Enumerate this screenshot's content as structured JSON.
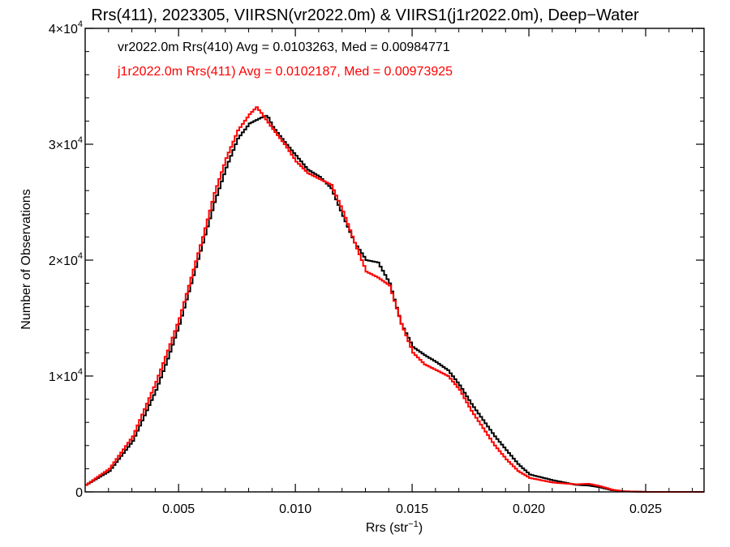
{
  "chart_data": {
    "type": "line",
    "title": "Rrs(411), 2023305, VIIRSN(vr2022.0m) & VIIRS1(j1r2022.0m), Deep−Water",
    "xlabel": "Rrs (str⁻¹)",
    "ylabel": "Number of Observations",
    "xlim": [
      0.001,
      0.0275
    ],
    "ylim": [
      0,
      40000
    ],
    "xticks": [
      0.005,
      0.01,
      0.015,
      0.02,
      0.025
    ],
    "xtick_labels": [
      "0.005",
      "0.010",
      "0.015",
      "0.020",
      "0.025"
    ],
    "yticks": [
      0,
      10000,
      20000,
      30000,
      40000
    ],
    "ytick_labels": [
      {
        "base": "0",
        "exp": ""
      },
      {
        "base": "1×10",
        "exp": "4"
      },
      {
        "base": "2×10",
        "exp": "4"
      },
      {
        "base": "3×10",
        "exp": "4"
      },
      {
        "base": "4×10",
        "exp": "4"
      }
    ],
    "grid": false,
    "legend_position": "top-left",
    "series": [
      {
        "label": "vr2022.0m Rrs(410) Avg = 0.0103263, Med = 0.00984771",
        "color": "#000000",
        "x": [
          0.001,
          0.002,
          0.003,
          0.004,
          0.0045,
          0.005,
          0.0055,
          0.006,
          0.0065,
          0.007,
          0.0075,
          0.008,
          0.0085,
          0.00875,
          0.009,
          0.0095,
          0.01,
          0.0105,
          0.011,
          0.0115,
          0.012,
          0.0125,
          0.013,
          0.0135,
          0.014,
          0.0145,
          0.015,
          0.0155,
          0.016,
          0.0165,
          0.017,
          0.0175,
          0.018,
          0.0185,
          0.019,
          0.0195,
          0.02,
          0.021,
          0.022,
          0.0225,
          0.023,
          0.0235,
          0.024,
          0.025,
          0.026,
          0.0275
        ],
        "y": [
          600,
          1800,
          4400,
          8800,
          11500,
          14500,
          18000,
          21500,
          25000,
          28000,
          30500,
          31800,
          32300,
          32500,
          31500,
          30200,
          29000,
          27800,
          27200,
          26200,
          23800,
          21500,
          20000,
          19800,
          18000,
          14500,
          12500,
          11800,
          11200,
          10500,
          9200,
          7600,
          6200,
          4800,
          3600,
          2400,
          1500,
          1000,
          600,
          550,
          400,
          150,
          50,
          0,
          0,
          0
        ]
      },
      {
        "label": "j1r2022.0m Rrs(411) Avg = 0.0102187, Med = 0.00973925",
        "color": "#ff0000",
        "x": [
          0.001,
          0.002,
          0.003,
          0.004,
          0.0045,
          0.005,
          0.0055,
          0.006,
          0.0065,
          0.007,
          0.0075,
          0.008,
          0.0083,
          0.0085,
          0.00875,
          0.009,
          0.0095,
          0.01,
          0.0105,
          0.011,
          0.0115,
          0.012,
          0.0125,
          0.013,
          0.0135,
          0.014,
          0.0145,
          0.015,
          0.0155,
          0.016,
          0.0165,
          0.017,
          0.0175,
          0.018,
          0.0185,
          0.019,
          0.0195,
          0.02,
          0.021,
          0.022,
          0.0225,
          0.023,
          0.0235,
          0.024,
          0.025,
          0.026,
          0.0275
        ],
        "y": [
          600,
          2000,
          4800,
          9500,
          12200,
          15000,
          18500,
          22000,
          25800,
          28800,
          31200,
          32600,
          33200,
          32700,
          32000,
          31300,
          30000,
          28500,
          27500,
          27000,
          26500,
          24200,
          21500,
          19000,
          18500,
          17800,
          14500,
          12000,
          11000,
          10500,
          10000,
          8800,
          7000,
          5500,
          4000,
          2800,
          1800,
          1200,
          800,
          650,
          700,
          500,
          200,
          50,
          0,
          0,
          0
        ]
      }
    ]
  }
}
